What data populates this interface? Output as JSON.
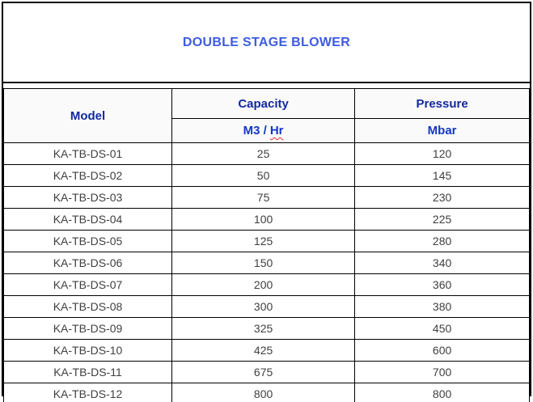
{
  "page": {
    "title_label": "DOUBLE STAGE BLOWER"
  },
  "colors": {
    "title_text": "#3d5be0",
    "header_text": "#1228a0",
    "unit_text": "#1437c8",
    "body_text": "#404040",
    "border": "#000000",
    "spellcheck_underline": "#e03131"
  },
  "table": {
    "headers": {
      "model": "Model",
      "capacity": "Capacity",
      "pressure": "Pressure"
    },
    "units": {
      "capacity_prefix": "M3 /",
      "capacity_suffix": "Hr",
      "pressure": "Mbar"
    },
    "rows": [
      {
        "model": "KA-TB-DS-01",
        "capacity": 25,
        "pressure": 120
      },
      {
        "model": "KA-TB-DS-02",
        "capacity": 50,
        "pressure": 145
      },
      {
        "model": "KA-TB-DS-03",
        "capacity": 75,
        "pressure": 230
      },
      {
        "model": "KA-TB-DS-04",
        "capacity": 100,
        "pressure": 225
      },
      {
        "model": "KA-TB-DS-05",
        "capacity": 125,
        "pressure": 280
      },
      {
        "model": "KA-TB-DS-06",
        "capacity": 150,
        "pressure": 340
      },
      {
        "model": "KA-TB-DS-07",
        "capacity": 200,
        "pressure": 360
      },
      {
        "model": "KA-TB-DS-08",
        "capacity": 300,
        "pressure": 380
      },
      {
        "model": "KA-TB-DS-09",
        "capacity": 325,
        "pressure": 450
      },
      {
        "model": "KA-TB-DS-10",
        "capacity": 425,
        "pressure": 600
      },
      {
        "model": "KA-TB-DS-11",
        "capacity": 675,
        "pressure": 700
      },
      {
        "model": "KA-TB-DS-12",
        "capacity": 800,
        "pressure": 800
      }
    ]
  }
}
